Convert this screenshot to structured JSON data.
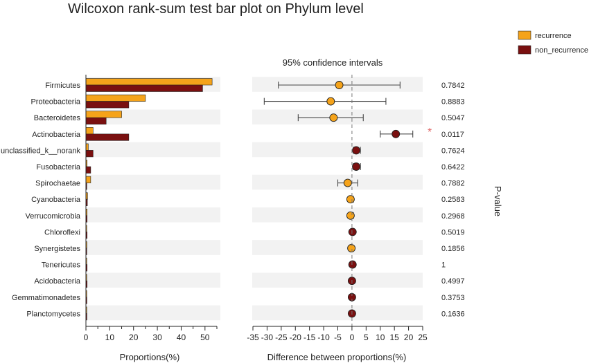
{
  "chart_data": {
    "type": "bar",
    "title": "Wilcoxon rank-sum test bar plot on Phylum level",
    "ci_title": "95% confidence intervals",
    "xlabel_left": "Proportions(%)",
    "xlabel_right": "Difference between proportions(%)",
    "pvalue_label": "P-value",
    "legend": [
      "recurrence",
      "non_recurrence"
    ],
    "legend_position": "top-right",
    "colors": {
      "recurrence": "#F5A31A",
      "non_recurrence": "#7A1010",
      "stripe": "#F2F2F2",
      "star": "#E06666"
    },
    "categories": [
      "Firmicutes",
      "Proteobacteria",
      "Bacteroidetes",
      "Actinobacteria",
      "unclassified_k__norank",
      "Fusobacteria",
      "Spirochaetae",
      "Cyanobacteria",
      "Verrucomicrobia",
      "Chloroflexi",
      "Synergistetes",
      "Tenericutes",
      "Acidobacteria",
      "Gemmatimonadetes",
      "Planctomycetes"
    ],
    "series": [
      {
        "name": "recurrence",
        "values": [
          53,
          25,
          15,
          3,
          1,
          0.5,
          2,
          0.7,
          0.5,
          0.3,
          0.4,
          0.2,
          0.3,
          0.2,
          0.2
        ]
      },
      {
        "name": "non_recurrence",
        "values": [
          49,
          18,
          8.5,
          18,
          3,
          2,
          0.3,
          0.6,
          0.5,
          0.5,
          0.2,
          0.5,
          0.5,
          0.4,
          0.4
        ]
      }
    ],
    "xlim_left": [
      0,
      55
    ],
    "xticks_left": [
      0,
      10,
      20,
      30,
      40,
      50
    ],
    "difference": [
      -4.5,
      -7.5,
      -6.5,
      15.5,
      1.5,
      1.5,
      -1.5,
      -0.5,
      -0.5,
      0.2,
      -0.2,
      0.2,
      0,
      0,
      0
    ],
    "ci_low": [
      -26,
      -31,
      -19,
      10,
      0.5,
      0.5,
      -5,
      -1,
      -1,
      -0.3,
      -0.7,
      -0.3,
      -0.5,
      -0.5,
      -0.5
    ],
    "ci_high": [
      17,
      12,
      4,
      21.5,
      3,
      3,
      2,
      0.5,
      0.5,
      0.7,
      0.3,
      0.7,
      0.5,
      0.5,
      0.5
    ],
    "pvalues": [
      "0.7842",
      "0.8883",
      "0.5047",
      "0.0117",
      "0.7624",
      "0.6422",
      "0.7882",
      "0.2583",
      "0.2968",
      "0.5019",
      "0.1856",
      "1",
      "0.4997",
      "0.3753",
      "0.1636"
    ],
    "significant_marker": "*",
    "xlim_right": [
      -35,
      25
    ],
    "xticks_right": [
      "-35",
      "-30",
      "-25",
      "-20",
      "-15",
      "-10",
      "-5",
      "0",
      "5",
      "10",
      "15",
      "20",
      "25"
    ]
  }
}
